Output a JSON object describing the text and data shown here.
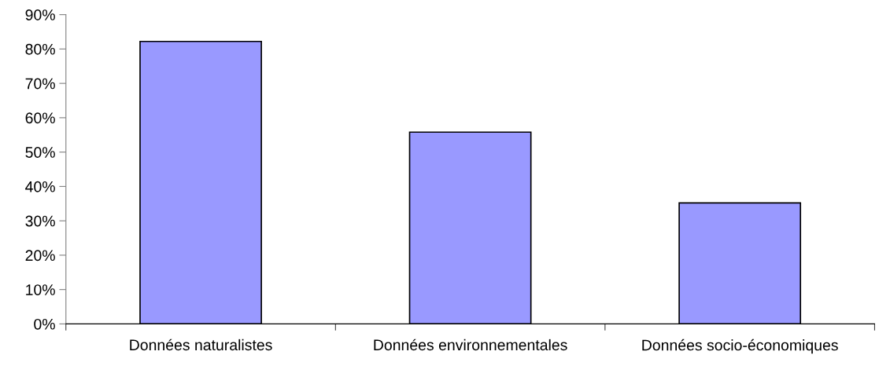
{
  "chart_data": {
    "type": "bar",
    "categories": [
      "Données naturalistes",
      "Données environnementales",
      "Données socio-économiques"
    ],
    "values": [
      82.2,
      55.8,
      35.2
    ],
    "color": "#9999ff",
    "ylim": [
      0,
      90
    ],
    "yticks": [
      {
        "value": 0,
        "label": "0%"
      },
      {
        "value": 10,
        "label": "10%"
      },
      {
        "value": 20,
        "label": "20%"
      },
      {
        "value": 30,
        "label": "30%"
      },
      {
        "value": 40,
        "label": "40%"
      },
      {
        "value": 50,
        "label": "50%"
      },
      {
        "value": 60,
        "label": "60%"
      },
      {
        "value": 70,
        "label": "70%"
      },
      {
        "value": 80,
        "label": "80%"
      },
      {
        "value": 90,
        "label": "90%"
      }
    ],
    "grid": false,
    "legend": false
  }
}
